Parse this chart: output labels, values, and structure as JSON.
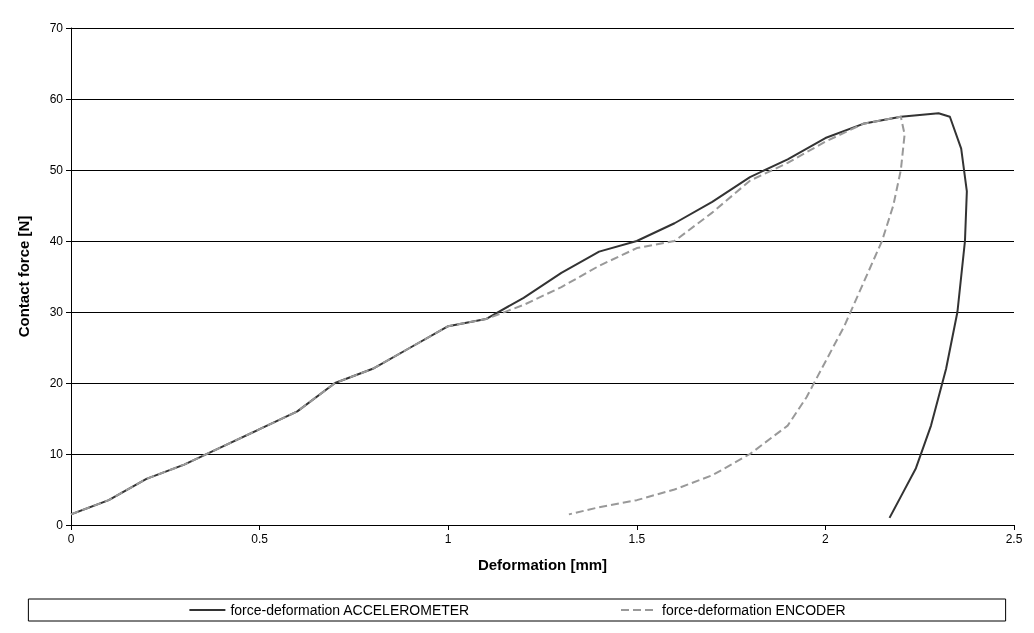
{
  "chart_data": {
    "type": "line",
    "xlabel": "Deformation [mm]",
    "ylabel": "Contact force [N]",
    "xlim": [
      0,
      2.5
    ],
    "xticks": [
      0,
      0.5,
      1,
      1.5,
      2,
      2.5
    ],
    "ylim": [
      0,
      70
    ],
    "yticks": [
      0,
      10,
      20,
      30,
      40,
      50,
      60,
      70
    ],
    "grid": "y",
    "legend": "bottom",
    "marker": "none",
    "series": [
      {
        "name": "force-deformation ACCELEROMETER",
        "color": "#333333",
        "line_style": "solid",
        "x": [
          0,
          0.1,
          0.2,
          0.3,
          0.4,
          0.5,
          0.6,
          0.7,
          0.8,
          0.9,
          1.0,
          1.1,
          1.2,
          1.3,
          1.4,
          1.5,
          1.6,
          1.7,
          1.8,
          1.9,
          2.0,
          2.1,
          2.2,
          2.3,
          2.33,
          2.36,
          2.375,
          2.37,
          2.35,
          2.32,
          2.28,
          2.24,
          2.2,
          2.17
        ],
        "values": [
          1.5,
          3.5,
          6.5,
          8.5,
          11,
          13.5,
          16,
          20,
          22,
          25,
          28,
          29,
          32,
          35.5,
          38.5,
          40,
          42.5,
          45.5,
          49,
          51.5,
          54.5,
          56.5,
          57.5,
          58,
          57.5,
          53,
          47,
          40,
          30,
          22,
          14,
          8,
          4,
          1
        ]
      },
      {
        "name": "force-deformation ENCODER",
        "color": "#999999",
        "line_style": "dashed",
        "x": [
          0,
          0.1,
          0.2,
          0.3,
          0.4,
          0.5,
          0.6,
          0.7,
          0.8,
          0.9,
          1.0,
          1.1,
          1.2,
          1.3,
          1.4,
          1.5,
          1.6,
          1.7,
          1.8,
          1.9,
          2.0,
          2.1,
          2.2,
          2.21,
          2.2,
          2.18,
          2.15,
          2.1,
          2.05,
          2.0,
          1.95,
          1.9,
          1.8,
          1.7,
          1.6,
          1.5,
          1.4,
          1.32
        ],
        "values": [
          1.5,
          3.5,
          6.5,
          8.5,
          11,
          13.5,
          16,
          20,
          22,
          25,
          28,
          29,
          31,
          33.5,
          36.5,
          39,
          40,
          44,
          48.5,
          51,
          54,
          56.5,
          57.5,
          55,
          50,
          45,
          40,
          34,
          28,
          23,
          18,
          14,
          10,
          7,
          5,
          3.5,
          2.5,
          1.5
        ]
      }
    ]
  }
}
